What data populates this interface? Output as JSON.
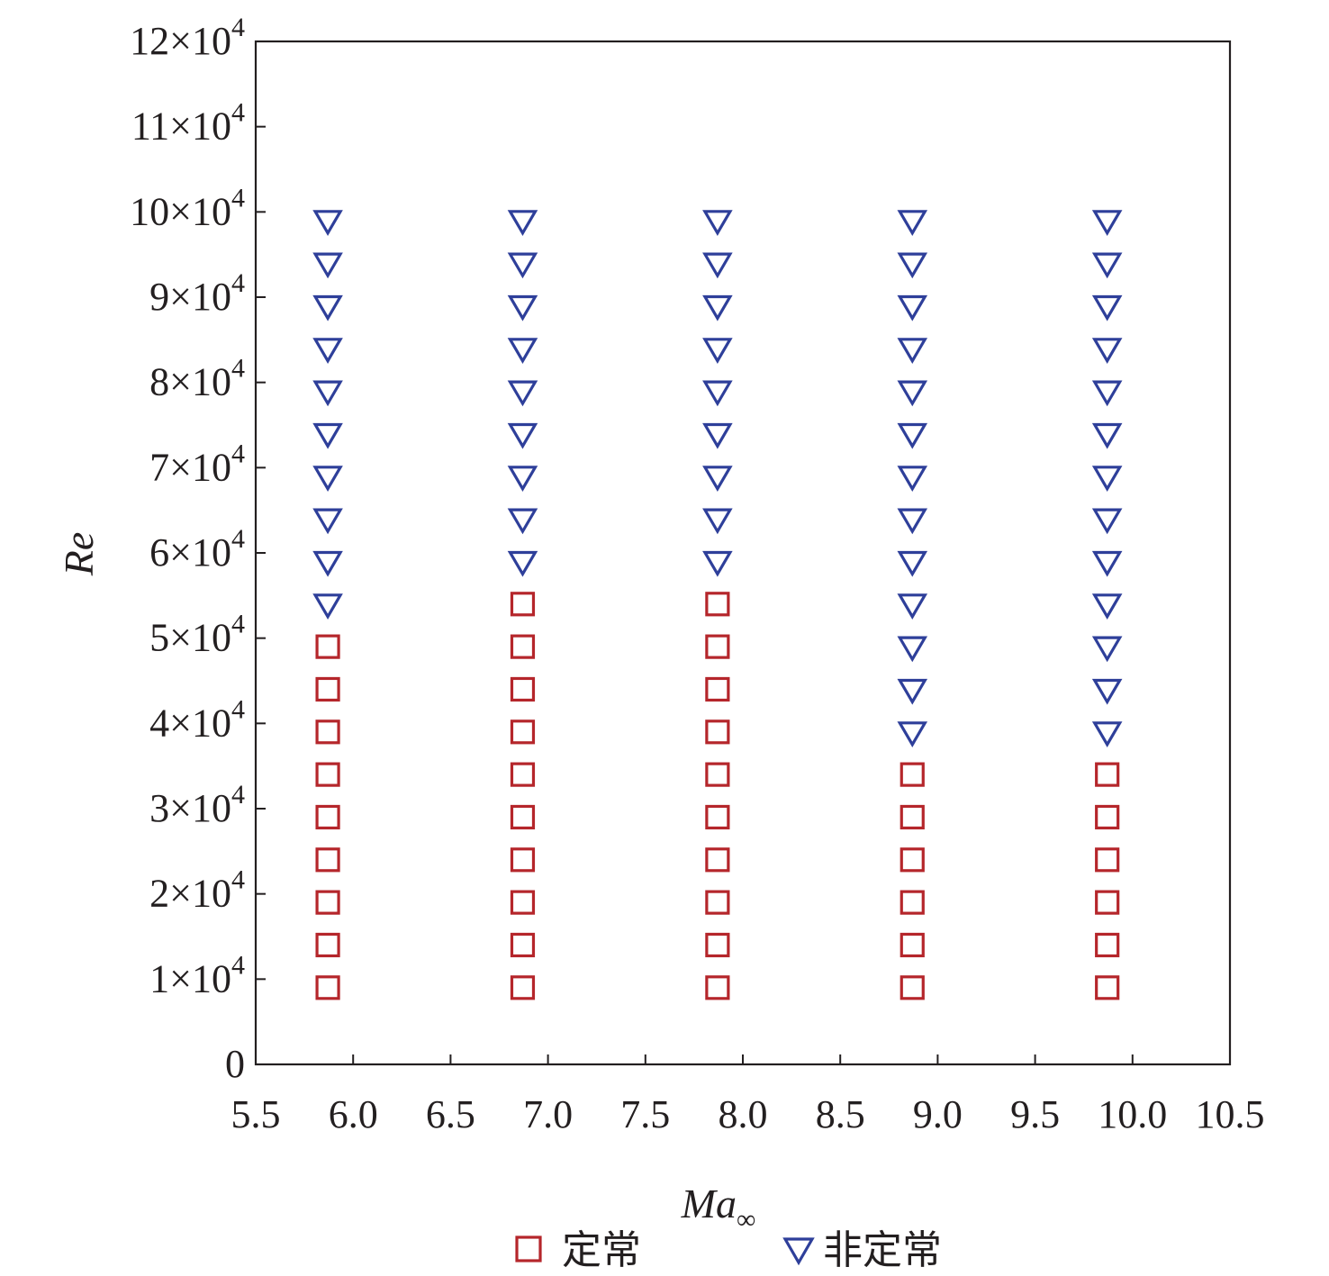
{
  "chart_data": {
    "type": "scatter",
    "xlabel": "Ma",
    "xlabel_sub": "∞",
    "ylabel": "Re",
    "xlim": [
      5.5,
      10.5
    ],
    "ylim": [
      0,
      120000
    ],
    "xticks": [
      5.5,
      6.0,
      6.5,
      7.0,
      7.5,
      8.0,
      8.5,
      9.0,
      9.5,
      10.0,
      10.5
    ],
    "xtick_labels": [
      "5.5",
      "6.0",
      "6.5",
      "7.0",
      "7.5",
      "8.0",
      "8.5",
      "9.0",
      "9.5",
      "10.0",
      "10.5"
    ],
    "yticks": [
      0,
      10000,
      20000,
      30000,
      40000,
      50000,
      60000,
      70000,
      80000,
      90000,
      100000,
      110000,
      120000
    ],
    "ytick_labels": [
      {
        "mant": "0",
        "exp": ""
      },
      {
        "mant": "1×10",
        "exp": "4"
      },
      {
        "mant": "2×10",
        "exp": "4"
      },
      {
        "mant": "3×10",
        "exp": "4"
      },
      {
        "mant": "4×10",
        "exp": "4"
      },
      {
        "mant": "5×10",
        "exp": "4"
      },
      {
        "mant": "6×10",
        "exp": "4"
      },
      {
        "mant": "7×10",
        "exp": "4"
      },
      {
        "mant": "8×10",
        "exp": "4"
      },
      {
        "mant": "9×10",
        "exp": "4"
      },
      {
        "mant": "10×10",
        "exp": "4"
      },
      {
        "mant": "11×10",
        "exp": "4"
      },
      {
        "mant": "12×10",
        "exp": "4"
      }
    ],
    "grid": false,
    "legend_position": "bottom",
    "series": [
      {
        "name": "定常",
        "marker": "square",
        "color": "#b5262b",
        "points": [
          [
            5.87,
            9000
          ],
          [
            5.87,
            14000
          ],
          [
            5.87,
            19000
          ],
          [
            5.87,
            24000
          ],
          [
            5.87,
            29000
          ],
          [
            5.87,
            34000
          ],
          [
            5.87,
            39000
          ],
          [
            5.87,
            44000
          ],
          [
            5.87,
            49000
          ],
          [
            6.87,
            9000
          ],
          [
            6.87,
            14000
          ],
          [
            6.87,
            19000
          ],
          [
            6.87,
            24000
          ],
          [
            6.87,
            29000
          ],
          [
            6.87,
            34000
          ],
          [
            6.87,
            39000
          ],
          [
            6.87,
            44000
          ],
          [
            6.87,
            49000
          ],
          [
            6.87,
            54000
          ],
          [
            7.87,
            9000
          ],
          [
            7.87,
            14000
          ],
          [
            7.87,
            19000
          ],
          [
            7.87,
            24000
          ],
          [
            7.87,
            29000
          ],
          [
            7.87,
            34000
          ],
          [
            7.87,
            39000
          ],
          [
            7.87,
            44000
          ],
          [
            7.87,
            49000
          ],
          [
            7.87,
            54000
          ],
          [
            8.87,
            9000
          ],
          [
            8.87,
            14000
          ],
          [
            8.87,
            19000
          ],
          [
            8.87,
            24000
          ],
          [
            8.87,
            29000
          ],
          [
            8.87,
            34000
          ],
          [
            9.87,
            9000
          ],
          [
            9.87,
            14000
          ],
          [
            9.87,
            19000
          ],
          [
            9.87,
            24000
          ],
          [
            9.87,
            29000
          ],
          [
            9.87,
            34000
          ]
        ]
      },
      {
        "name": "非定常",
        "marker": "triangle-down",
        "color": "#2e3f9a",
        "points": [
          [
            5.87,
            54000
          ],
          [
            5.87,
            59000
          ],
          [
            5.87,
            64000
          ],
          [
            5.87,
            69000
          ],
          [
            5.87,
            74000
          ],
          [
            5.87,
            79000
          ],
          [
            5.87,
            84000
          ],
          [
            5.87,
            89000
          ],
          [
            5.87,
            94000
          ],
          [
            5.87,
            99000
          ],
          [
            6.87,
            59000
          ],
          [
            6.87,
            64000
          ],
          [
            6.87,
            69000
          ],
          [
            6.87,
            74000
          ],
          [
            6.87,
            79000
          ],
          [
            6.87,
            84000
          ],
          [
            6.87,
            89000
          ],
          [
            6.87,
            94000
          ],
          [
            6.87,
            99000
          ],
          [
            7.87,
            59000
          ],
          [
            7.87,
            64000
          ],
          [
            7.87,
            69000
          ],
          [
            7.87,
            74000
          ],
          [
            7.87,
            79000
          ],
          [
            7.87,
            84000
          ],
          [
            7.87,
            89000
          ],
          [
            7.87,
            94000
          ],
          [
            7.87,
            99000
          ],
          [
            8.87,
            39000
          ],
          [
            8.87,
            44000
          ],
          [
            8.87,
            49000
          ],
          [
            8.87,
            54000
          ],
          [
            8.87,
            59000
          ],
          [
            8.87,
            64000
          ],
          [
            8.87,
            69000
          ],
          [
            8.87,
            74000
          ],
          [
            8.87,
            79000
          ],
          [
            8.87,
            84000
          ],
          [
            8.87,
            89000
          ],
          [
            8.87,
            94000
          ],
          [
            8.87,
            99000
          ],
          [
            9.87,
            39000
          ],
          [
            9.87,
            44000
          ],
          [
            9.87,
            49000
          ],
          [
            9.87,
            54000
          ],
          [
            9.87,
            59000
          ],
          [
            9.87,
            64000
          ],
          [
            9.87,
            69000
          ],
          [
            9.87,
            74000
          ],
          [
            9.87,
            79000
          ],
          [
            9.87,
            84000
          ],
          [
            9.87,
            89000
          ],
          [
            9.87,
            94000
          ],
          [
            9.87,
            99000
          ]
        ]
      }
    ]
  }
}
